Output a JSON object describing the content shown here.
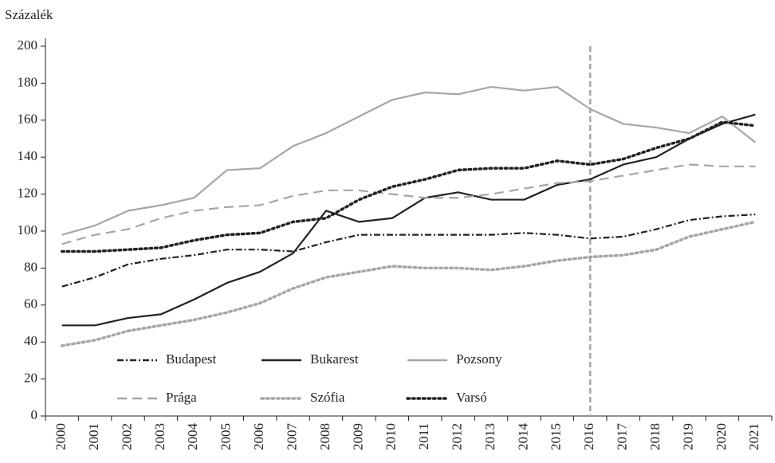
{
  "chart_data": {
    "type": "line",
    "y_label": "Százalék",
    "categories": [
      "2000",
      "2001",
      "2002",
      "2003",
      "2004",
      "2005",
      "2006",
      "2007",
      "2008",
      "2009",
      "2010",
      "2011",
      "2012",
      "2013",
      "2014",
      "2015",
      "2016",
      "2017",
      "2018",
      "2019",
      "2020",
      "2021"
    ],
    "series": [
      {
        "name": "Budapest",
        "color": "#222222",
        "style": "dashdot",
        "values": [
          70,
          75,
          82,
          85,
          87,
          90,
          90,
          89,
          94,
          98,
          98,
          98,
          98,
          98,
          99,
          98,
          96,
          97,
          101,
          106,
          108,
          109
        ]
      },
      {
        "name": "Bukarest",
        "color": "#222222",
        "style": "solid",
        "values": [
          49,
          49,
          53,
          55,
          63,
          72,
          78,
          88,
          111,
          105,
          107,
          118,
          121,
          117,
          117,
          125,
          128,
          136,
          140,
          150,
          158,
          163
        ]
      },
      {
        "name": "Pozsony",
        "color": "#a6a6a6",
        "style": "solid",
        "values": [
          98,
          103,
          111,
          114,
          118,
          133,
          134,
          146,
          153,
          162,
          171,
          175,
          174,
          178,
          176,
          178,
          166,
          158,
          156,
          153,
          162,
          148
        ]
      },
      {
        "name": "Prága",
        "color": "#a6a6a6",
        "style": "dashed",
        "values": [
          93,
          98,
          101,
          107,
          111,
          113,
          114,
          119,
          122,
          122,
          120,
          118,
          118,
          120,
          123,
          126,
          127,
          130,
          133,
          136,
          135,
          135
        ]
      },
      {
        "name": "Szófia",
        "color": "#a6a6a6",
        "style": "dotted",
        "values": [
          38,
          41,
          46,
          49,
          52,
          56,
          61,
          69,
          75,
          78,
          81,
          80,
          80,
          79,
          81,
          84,
          86,
          87,
          90,
          97,
          101,
          105
        ]
      },
      {
        "name": "Varsó",
        "color": "#222222",
        "style": "dotted",
        "values": [
          89,
          89,
          90,
          91,
          95,
          98,
          99,
          105,
          107,
          117,
          124,
          128,
          133,
          134,
          134,
          138,
          136,
          139,
          145,
          150,
          159,
          157
        ]
      }
    ],
    "reference_line": {
      "category": "2016",
      "color": "#a6a6a6"
    },
    "ylim": [
      0,
      200
    ],
    "yticks": [
      0,
      20,
      40,
      60,
      80,
      100,
      120,
      140,
      160,
      180,
      200
    ],
    "grid": false
  }
}
